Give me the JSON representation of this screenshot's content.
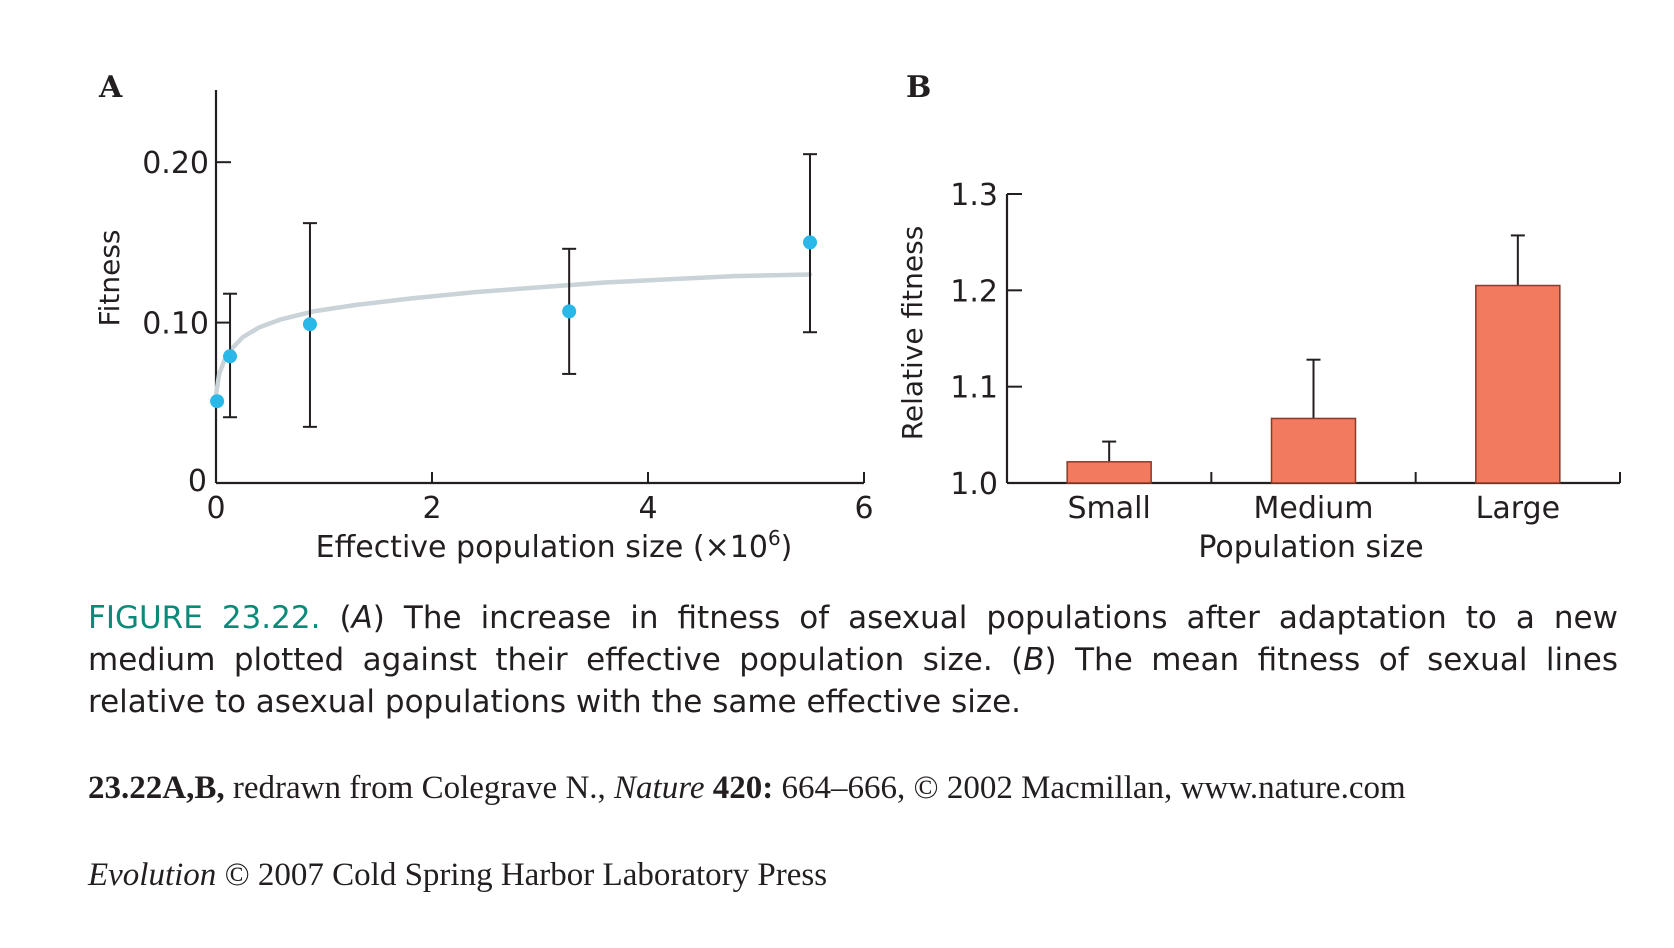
{
  "chart_data": [
    {
      "panel": "A",
      "type": "scatter",
      "xlabel_main": "Effective population size (",
      "xlabel_mult": "×10",
      "xlabel_exp": "6",
      "xlabel_close": ")",
      "ylabel": "Fitness",
      "xlim": [
        0,
        6
      ],
      "ylim": [
        0,
        0.245
      ],
      "x_ticks": [
        0,
        2,
        4,
        6
      ],
      "x_tick_labels": [
        "0",
        "2",
        "4",
        "6"
      ],
      "y_ticks": [
        0,
        0.1,
        0.2
      ],
      "y_tick_labels": [
        "0",
        "0.10",
        "0.20"
      ],
      "points": [
        {
          "x": 0.01,
          "y": 0.051
        },
        {
          "x": 0.13,
          "y": 0.079,
          "err_low": 0.041,
          "err_high": 0.118
        },
        {
          "x": 0.87,
          "y": 0.099,
          "err_low": 0.035,
          "err_high": 0.162
        },
        {
          "x": 3.27,
          "y": 0.107,
          "err_low": 0.068,
          "err_high": 0.146
        },
        {
          "x": 5.5,
          "y": 0.15,
          "err_low": 0.094,
          "err_high": 0.205
        }
      ],
      "fit_curve": {
        "x": [
          0.0,
          0.03,
          0.08,
          0.15,
          0.25,
          0.4,
          0.6,
          0.9,
          1.3,
          1.8,
          2.4,
          3.0,
          3.6,
          4.2,
          4.8,
          5.5
        ],
        "y": [
          0.055,
          0.068,
          0.077,
          0.084,
          0.091,
          0.097,
          0.102,
          0.107,
          0.111,
          0.115,
          0.119,
          0.122,
          0.125,
          0.127,
          0.129,
          0.13
        ]
      },
      "colors": {
        "point": "#29b8e8",
        "curve": "#c9d3d8",
        "axis": "#231f20"
      }
    },
    {
      "panel": "B",
      "type": "bar",
      "xlabel": "Population size",
      "ylabel": "Relative fitness",
      "categories": [
        "Small",
        "Medium",
        "Large"
      ],
      "values": [
        1.022,
        1.067,
        1.205
      ],
      "err_high": [
        1.043,
        1.128,
        1.257
      ],
      "ylim": [
        1.0,
        1.3
      ],
      "y_ticks": [
        1.0,
        1.1,
        1.2,
        1.3
      ],
      "y_tick_labels": [
        "1.0",
        "1.1",
        "1.2",
        "1.3"
      ],
      "colors": {
        "bar": "#f27a5e",
        "bar_stroke": "#8a3a2a",
        "axis": "#231f20"
      }
    }
  ],
  "panel_labels": {
    "a": "A",
    "b": "B"
  },
  "caption": {
    "label": "FIGURE 23.22.",
    "part_a_open": "(",
    "part_a_letter": "A",
    "part_a_close": ")",
    "text_1": " The increase in fitness of asexual populations after adaptation to a new medium plotted against their effective population size. ",
    "part_b_open": "(",
    "part_b_letter": "B",
    "part_b_close": ")",
    "text_2": " The mean fitness of sexual lines relative to asexual populations with the same effective size.",
    "label_color": "#0b8a7a"
  },
  "credit": {
    "ref": "23.22A,B,",
    "text_1": " redrawn from Colegrave N., ",
    "journal": "Nature",
    "volume": " 420:",
    "text_2": " 664–666, © 2002 Macmillan, www.nature.com"
  },
  "copyright": {
    "title": "Evolution",
    "text": " © 2007 Cold Spring Harbor Laboratory Press"
  }
}
